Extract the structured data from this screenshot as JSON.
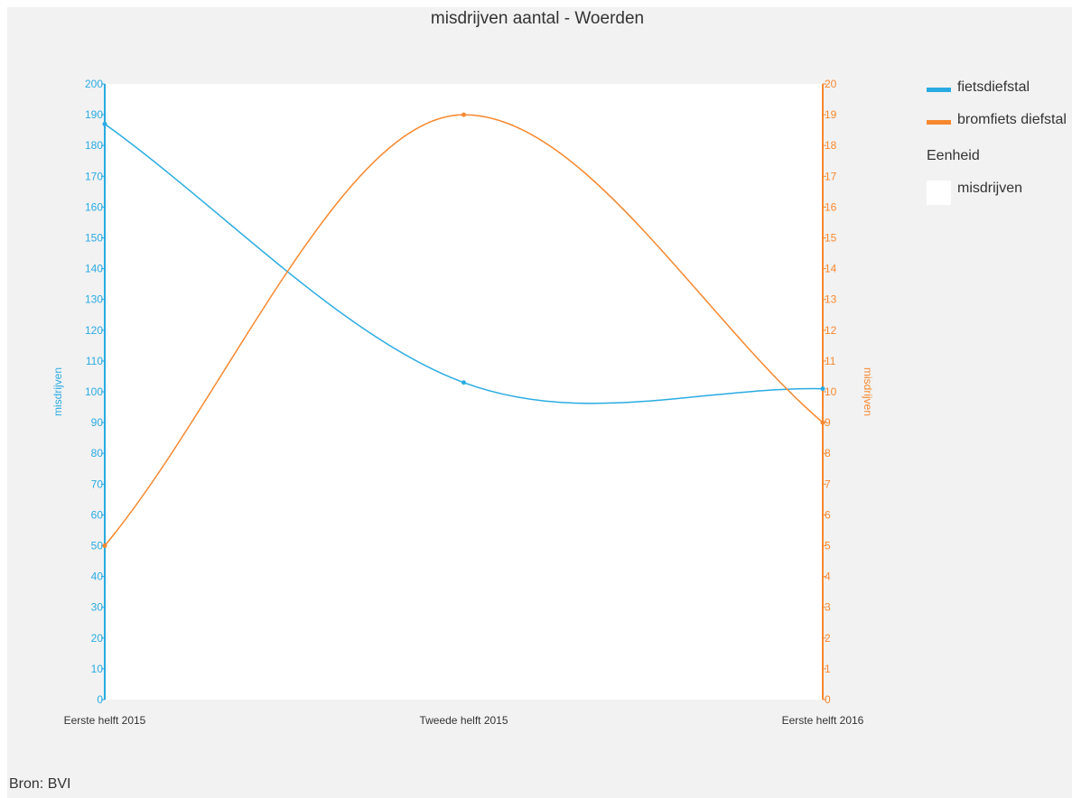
{
  "chart_data": {
    "type": "line",
    "title": "misdrijven aantal - Woerden",
    "categories": [
      "Eerste helft 2015",
      "Tweede helft 2015",
      "Eerste helft 2016"
    ],
    "series": [
      {
        "name": "fietsdiefstal",
        "axis": "left",
        "color": "#29abe2",
        "values": [
          187,
          103,
          101
        ]
      },
      {
        "name": "bromfiets diefstal",
        "axis": "right",
        "color": "#f7882f",
        "values": [
          5,
          19,
          9
        ]
      }
    ],
    "y_left": {
      "label": "misdrijven",
      "min": 0,
      "max": 200,
      "step": 10,
      "color": "#29abe2"
    },
    "y_right": {
      "label": "misdrijven",
      "min": 0,
      "max": 20,
      "step": 1,
      "color": "#f7882f"
    },
    "grid": false,
    "legend_position": "right"
  },
  "legend": {
    "unit_title": "Eenheid",
    "unit_label": "misdrijven"
  },
  "source": "Bron: BVI"
}
